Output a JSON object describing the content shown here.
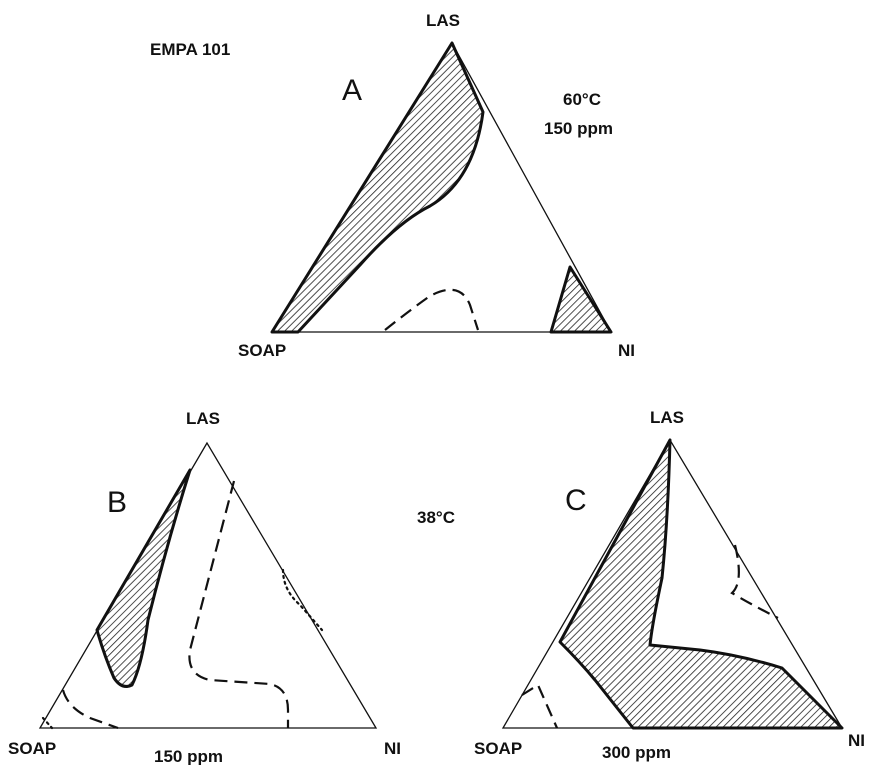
{
  "figure": {
    "header": "EMPA 101",
    "panels": [
      {
        "letter": "A",
        "vertex_top": "LAS",
        "vertex_left": "SOAP",
        "vertex_right": "NI",
        "temperature": "60°C",
        "hardness": "150 ppm"
      },
      {
        "letter": "B",
        "vertex_top": "LAS",
        "vertex_left": "SOAP",
        "vertex_right": "NI",
        "hardness": "150 ppm"
      },
      {
        "letter": "C",
        "vertex_top": "LAS",
        "vertex_left": "SOAP",
        "vertex_right": "NI",
        "hardness": "300 ppm"
      }
    ],
    "shared_temperature": "38°C"
  }
}
